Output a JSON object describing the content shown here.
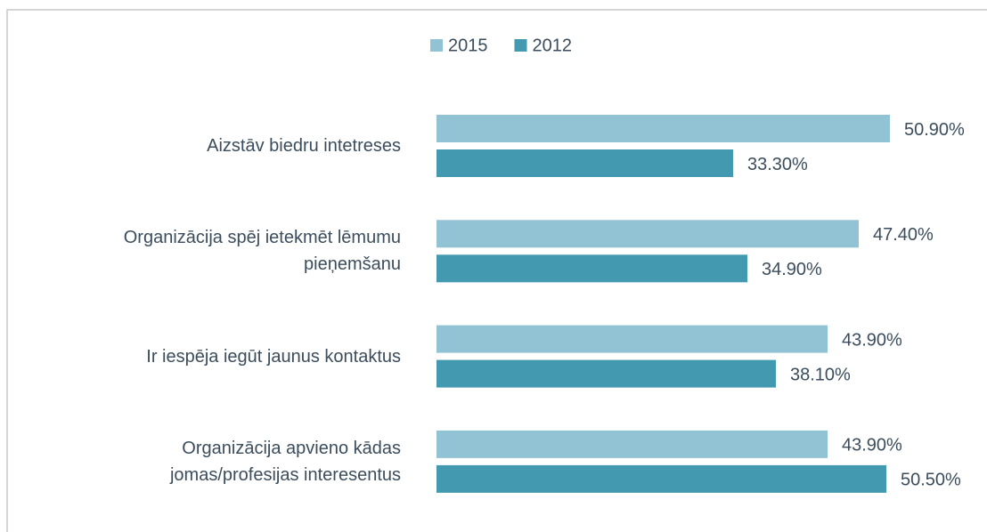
{
  "chart_data": {
    "type": "hbar",
    "categories": [
      "Aizstāv biedru intetreses",
      "Organizācija spēj ietekmēt lēmumu\npieņemšanu",
      "Ir iespēja iegūt jaunus kontaktus",
      "Organizācija apvieno kādas\njomas/profesijas interesentus"
    ],
    "series": [
      {
        "name": "2015",
        "color": "#92c3d4",
        "values": [
          50.9,
          47.4,
          43.9,
          43.9
        ],
        "value_labels": [
          "50.90%",
          "47.40%",
          "43.90%",
          "43.90%"
        ]
      },
      {
        "name": "2012",
        "color": "#4299b0",
        "values": [
          33.3,
          34.9,
          38.1,
          50.5
        ],
        "value_labels": [
          "33.30%",
          "34.90%",
          "38.10%",
          "50.50%"
        ]
      }
    ],
    "xlim": [
      0,
      60
    ],
    "legend": "top"
  }
}
